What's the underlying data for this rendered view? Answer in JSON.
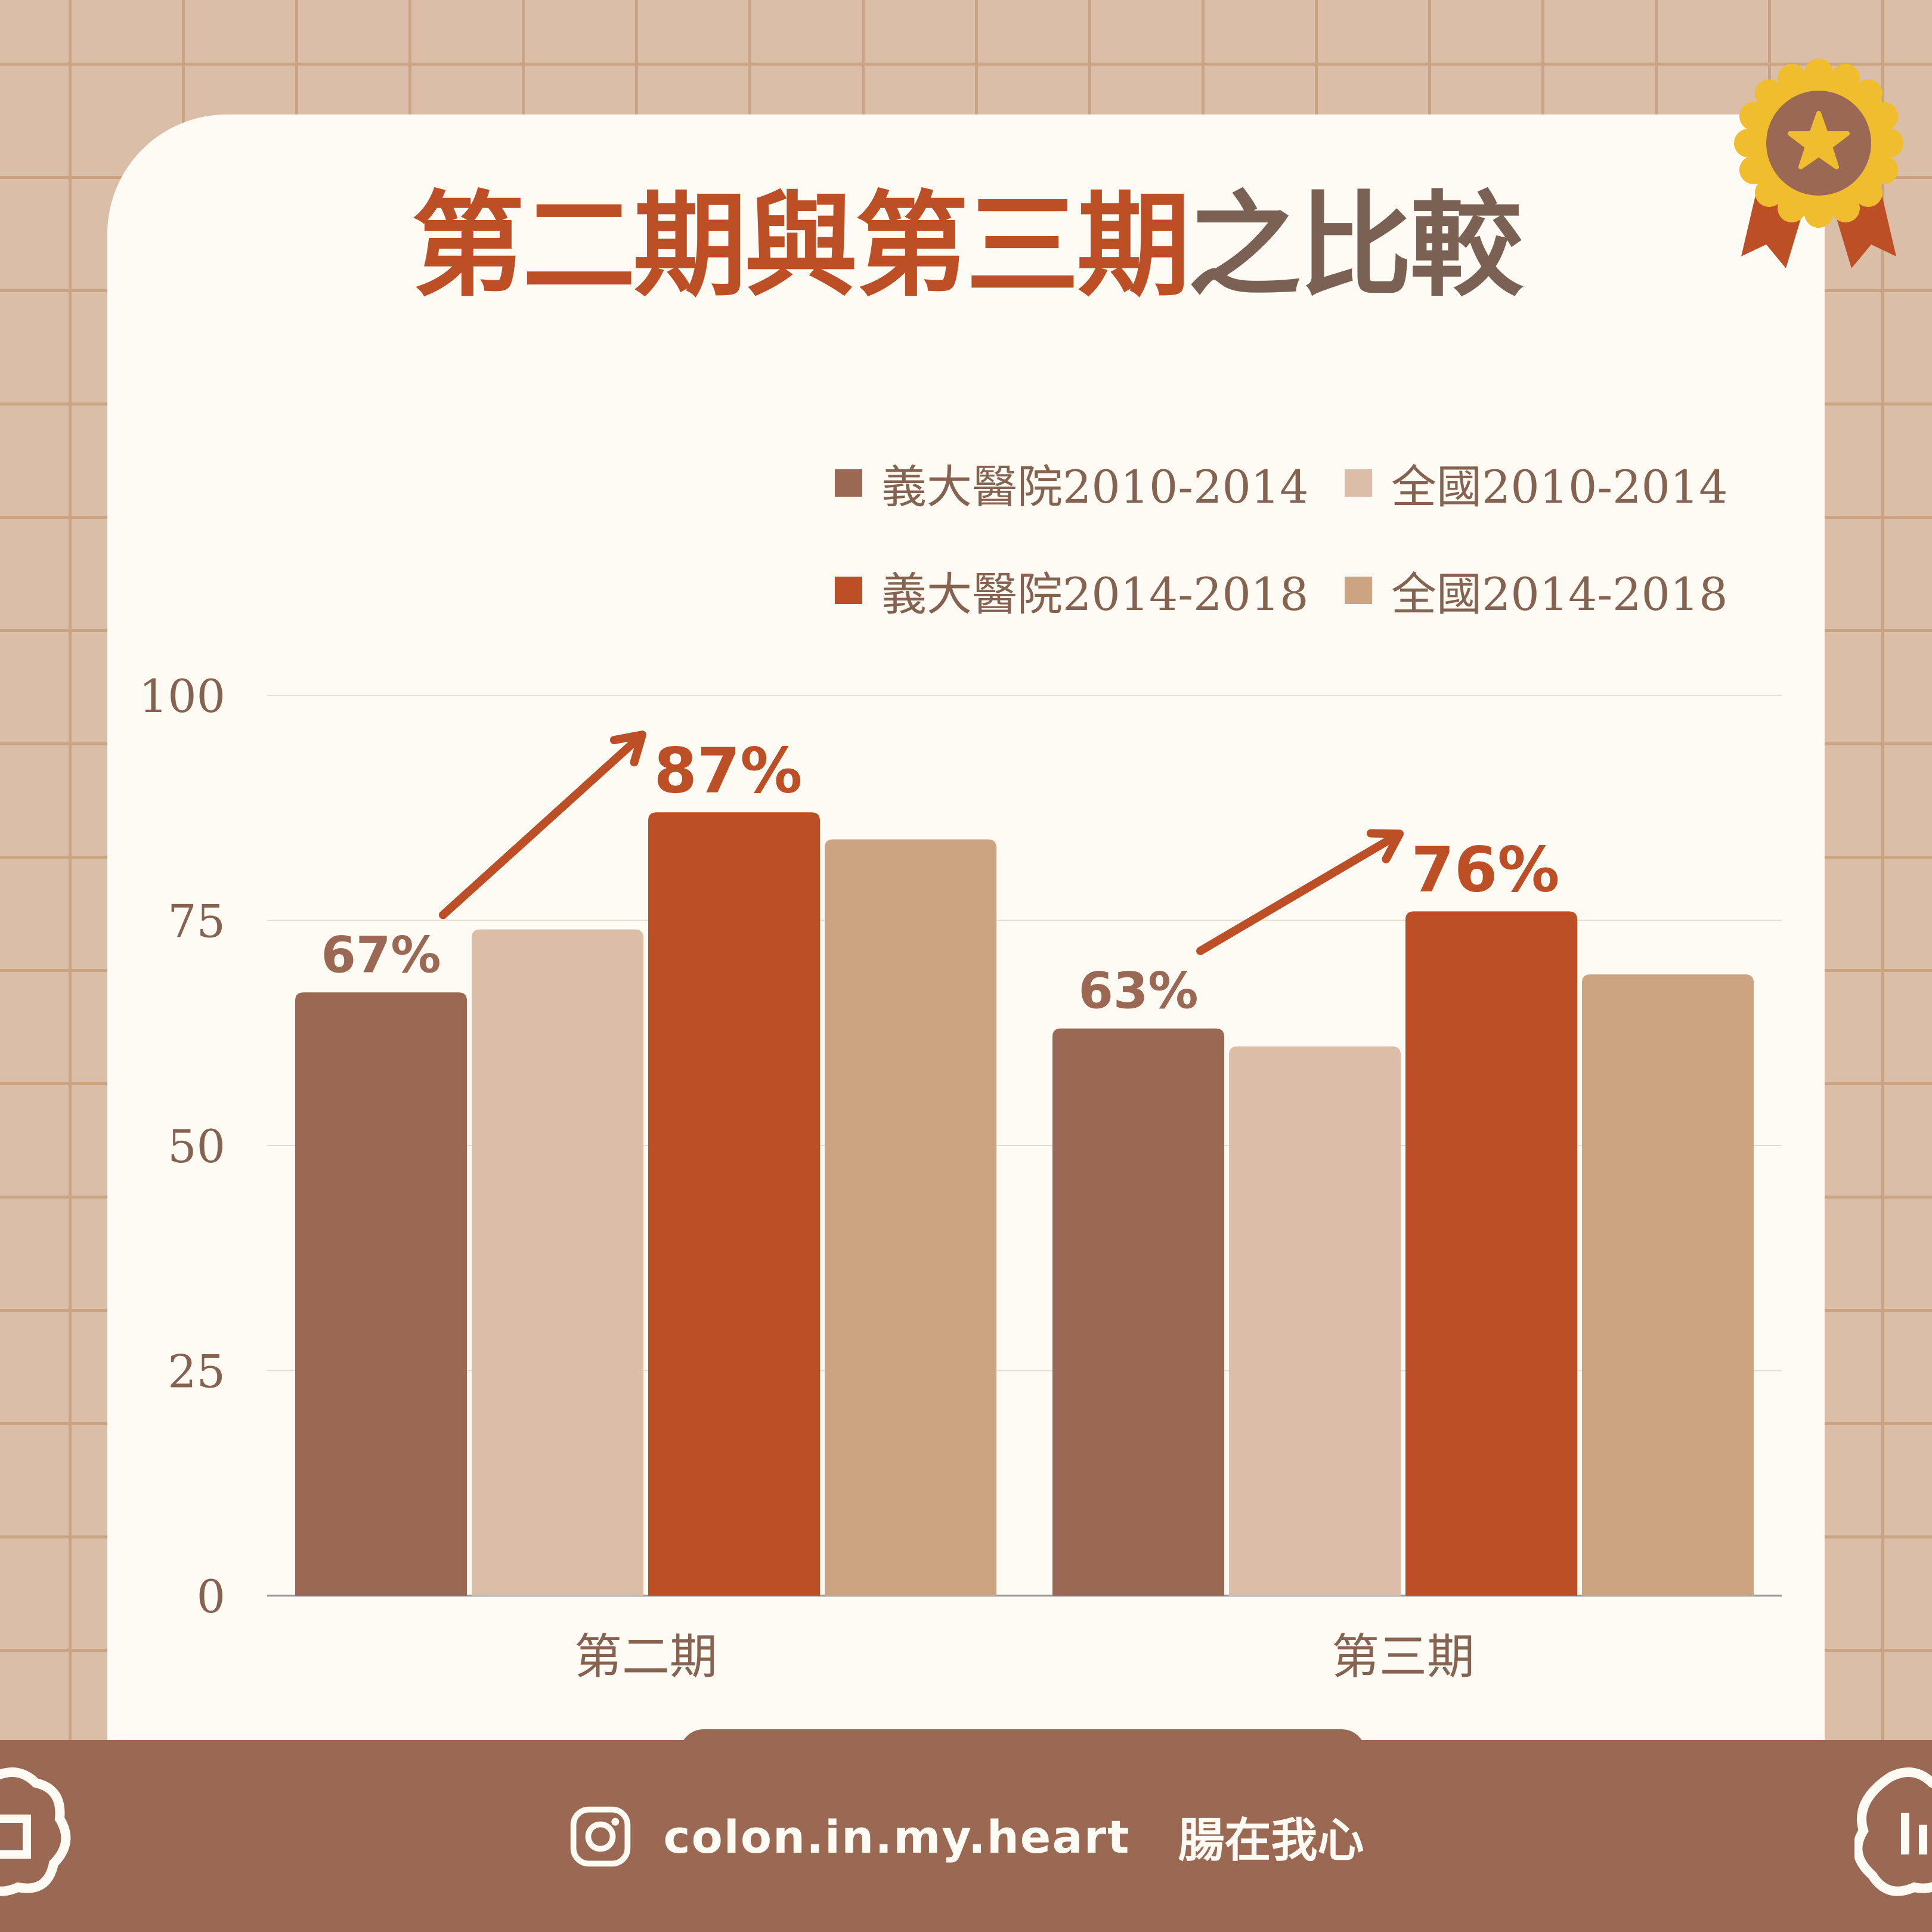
{
  "title": {
    "accent": "第二期與第三期",
    "rest": "之比較"
  },
  "colors": {
    "s1": "#9a6853",
    "s2": "#dbbda8",
    "s3": "#bd4f27",
    "s4": "#cca481",
    "accent": "#bd4f27",
    "text": "#866351"
  },
  "chart_data": {
    "type": "bar",
    "categories": [
      "第二期",
      "第三期"
    ],
    "series": [
      {
        "name": "義大醫院2010-2014",
        "values": [
          67,
          63
        ]
      },
      {
        "name": "全國2010-2014",
        "values": [
          74,
          61
        ]
      },
      {
        "name": "義大醫院2014-2018",
        "values": [
          87,
          76
        ]
      },
      {
        "name": "全國2014-2018",
        "values": [
          84,
          69
        ]
      }
    ],
    "yticks": [
      "0",
      "25",
      "50",
      "75",
      "100"
    ],
    "ylim": [
      0,
      100
    ],
    "grid": true,
    "legend_position": "top-right",
    "annotations": [
      {
        "from": "67%",
        "to": "87%"
      },
      {
        "from": "63%",
        "to": "76%"
      }
    ]
  },
  "footer": {
    "icon": "instagram-icon",
    "handle": "colon.in.my.heart",
    "brand": "腸在我心"
  }
}
